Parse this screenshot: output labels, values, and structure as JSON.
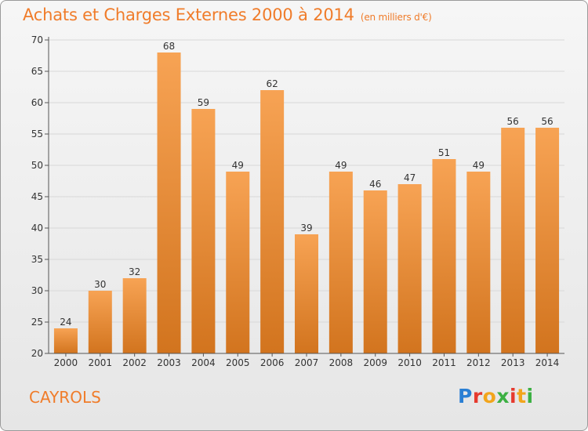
{
  "header": {
    "title": "Achats et Charges Externes 2000 à 2014",
    "unit": "(en milliers d'€)"
  },
  "footer": {
    "commune": "CAYROLS",
    "logo": {
      "letters": [
        "P",
        "r",
        "o",
        "x",
        "i",
        "t",
        "i"
      ],
      "colors": [
        "#2a7fd4",
        "#e63a2e",
        "#f2a51c",
        "#3cb043",
        "#e63a2e",
        "#f2a51c",
        "#3cb043"
      ]
    }
  },
  "colors": {
    "bar_top": "#f7a354",
    "bar_bottom": "#d2741e",
    "accent": "#f07c2a",
    "grid": "#d8d8d8"
  },
  "chart_data": {
    "type": "bar",
    "title": "Achats et Charges Externes 2000 à 2014",
    "subtitle": "(en milliers d'€)",
    "xlabel": "",
    "ylabel": "",
    "categories": [
      "2000",
      "2001",
      "2002",
      "2003",
      "2004",
      "2005",
      "2006",
      "2007",
      "2008",
      "2009",
      "2010",
      "2011",
      "2012",
      "2013",
      "2014"
    ],
    "values": [
      24,
      30,
      32,
      68,
      59,
      49,
      62,
      39,
      49,
      46,
      47,
      51,
      49,
      56,
      56
    ],
    "ylim": [
      20,
      70
    ],
    "yticks": [
      20,
      25,
      30,
      35,
      40,
      45,
      50,
      55,
      60,
      65,
      70
    ],
    "grid": true,
    "data_labels": true
  }
}
